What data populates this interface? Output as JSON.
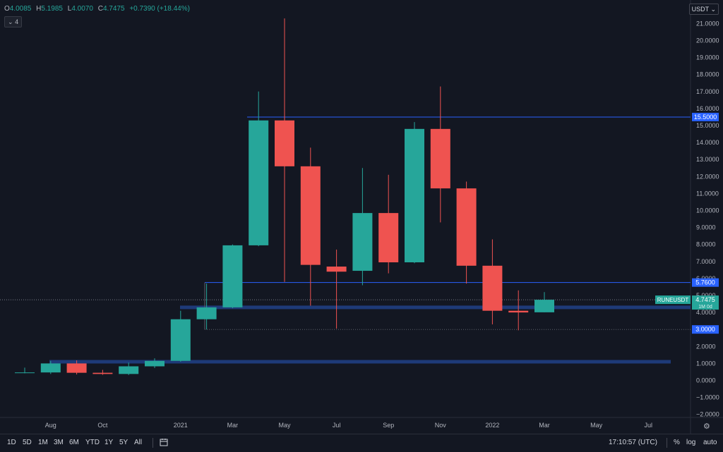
{
  "legend": {
    "open_key": "O",
    "open": "4.0085",
    "high_key": "H",
    "high": "5.1985",
    "low_key": "L",
    "low": "4.0070",
    "close_key": "C",
    "close": "4.7475",
    "change": "+0.7390 (+18.44%)"
  },
  "indicator_btn": "4",
  "currency_label": "USDT",
  "colors": {
    "bg": "#131722",
    "up": "#26a69a",
    "down": "#ef5350",
    "zone": "#1e3a78",
    "level_line": "#2962ff",
    "axis_text": "#b2b5be"
  },
  "chart_data": {
    "type": "candlestick",
    "symbol": "RUNEUSDT",
    "interval": "1M 0d",
    "ylim": [
      -2.2,
      22
    ],
    "y_ticks": [
      "−2.0000",
      "−1.0000",
      "0.0000",
      "1.0000",
      "2.0000",
      "3.0000",
      "4.0000",
      "5.0000",
      "6.0000",
      "7.0000",
      "8.0000",
      "9.0000",
      "10.0000",
      "11.0000",
      "12.0000",
      "13.0000",
      "14.0000",
      "15.0000",
      "16.0000",
      "17.0000",
      "18.0000",
      "19.0000",
      "20.0000",
      "21.0000"
    ],
    "y_tick_values": [
      -2,
      -1,
      0,
      1,
      2,
      3,
      4,
      5,
      6,
      7,
      8,
      9,
      10,
      11,
      12,
      13,
      14,
      15,
      16,
      17,
      18,
      19,
      20,
      21
    ],
    "x_labels": [
      "Aug",
      "Oct",
      "2021",
      "Mar",
      "May",
      "Jul",
      "Sep",
      "Nov",
      "2022",
      "Mar",
      "May",
      "Jul"
    ],
    "x_label_months": [
      1,
      3,
      6,
      8,
      10,
      12,
      14,
      16,
      18,
      20,
      22,
      24
    ],
    "candles": [
      {
        "m": 0,
        "o": 0.45,
        "h": 0.75,
        "l": 0.42,
        "c": 0.47
      },
      {
        "m": 1,
        "o": 0.47,
        "h": 1.15,
        "l": 0.38,
        "c": 1.0
      },
      {
        "m": 2,
        "o": 1.0,
        "h": 1.18,
        "l": 0.35,
        "c": 0.45
      },
      {
        "m": 3,
        "o": 0.45,
        "h": 0.62,
        "l": 0.33,
        "c": 0.38
      },
      {
        "m": 4,
        "o": 0.38,
        "h": 1.05,
        "l": 0.32,
        "c": 0.83
      },
      {
        "m": 5,
        "o": 0.83,
        "h": 1.3,
        "l": 0.73,
        "c": 1.15
      },
      {
        "m": 6,
        "o": 1.15,
        "h": 4.1,
        "l": 1.1,
        "c": 3.6
      },
      {
        "m": 7,
        "o": 3.6,
        "h": 5.7,
        "l": 3.0,
        "c": 4.3
      },
      {
        "m": 8,
        "o": 4.3,
        "h": 8.0,
        "l": 4.25,
        "c": 7.95
      },
      {
        "m": 9,
        "o": 7.95,
        "h": 17.0,
        "l": 7.9,
        "c": 15.3
      },
      {
        "m": 10,
        "o": 15.3,
        "h": 21.3,
        "l": 5.8,
        "c": 12.6
      },
      {
        "m": 11,
        "o": 12.6,
        "h": 13.7,
        "l": 4.4,
        "c": 6.8
      },
      {
        "m": 12,
        "o": 6.7,
        "h": 7.7,
        "l": 3.05,
        "c": 6.4
      },
      {
        "m": 13,
        "o": 6.45,
        "h": 12.5,
        "l": 5.6,
        "c": 9.85
      },
      {
        "m": 14,
        "o": 9.85,
        "h": 12.1,
        "l": 6.3,
        "c": 6.95
      },
      {
        "m": 15,
        "o": 6.95,
        "h": 15.2,
        "l": 6.9,
        "c": 14.8
      },
      {
        "m": 16,
        "o": 14.8,
        "h": 17.3,
        "l": 9.3,
        "c": 11.3
      },
      {
        "m": 17,
        "o": 11.3,
        "h": 11.7,
        "l": 5.7,
        "c": 6.75
      },
      {
        "m": 18,
        "o": 6.75,
        "h": 8.3,
        "l": 3.3,
        "c": 4.1
      },
      {
        "m": 19,
        "o": 4.1,
        "h": 5.3,
        "l": 2.95,
        "c": 4.0
      },
      {
        "m": 20,
        "o": 4.0085,
        "h": 5.1985,
        "l": 4.007,
        "c": 4.7475
      }
    ],
    "levels": [
      {
        "label": "15.5000",
        "value": 15.5
      },
      {
        "label": "5.7600",
        "value": 5.76
      },
      {
        "label": "3.0000",
        "value": 3.0
      }
    ],
    "zones": [
      {
        "value": 4.3
      },
      {
        "value": 1.1
      }
    ],
    "last_price_label": "4.7475"
  },
  "range_buttons": [
    "1D",
    "5D",
    "1M",
    "3M",
    "6M",
    "YTD",
    "1Y",
    "5Y",
    "All"
  ],
  "time_display": "17:10:57 (UTC)",
  "options": [
    "%",
    "log",
    "auto"
  ]
}
